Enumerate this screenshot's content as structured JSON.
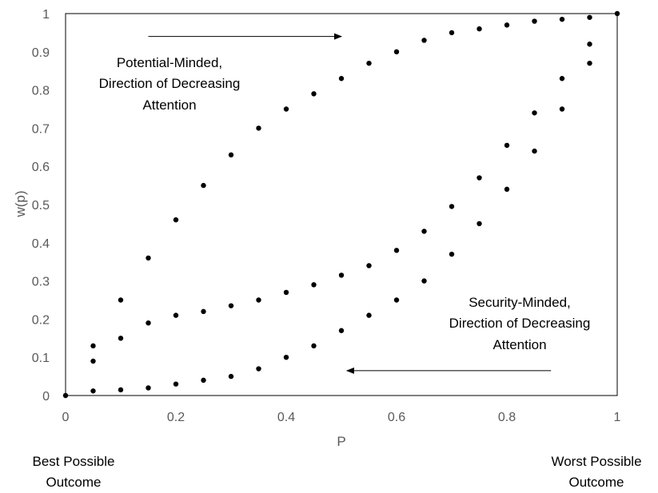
{
  "chart_data": {
    "type": "scatter",
    "title": "",
    "xlabel": "P",
    "ylabel": "w(p)",
    "xlim": [
      0,
      1
    ],
    "ylim": [
      0,
      1
    ],
    "grid": false,
    "x_ticks": [
      "0",
      "0.2",
      "0.4",
      "0.6",
      "0.8",
      "1"
    ],
    "y_ticks": [
      "0",
      "0.1",
      "0.2",
      "0.3",
      "0.4",
      "0.5",
      "0.6",
      "0.7",
      "0.8",
      "0.9",
      "1"
    ],
    "series": [
      {
        "x": [
          0,
          0.05,
          0.1,
          0.15,
          0.2,
          0.25,
          0.3,
          0.35,
          0.4,
          0.45,
          0.5,
          0.55,
          0.6,
          0.65,
          0.7,
          0.75,
          0.8,
          0.85,
          0.9,
          0.95,
          1
        ],
        "y": [
          0,
          0.13,
          0.25,
          0.36,
          0.46,
          0.55,
          0.63,
          0.7,
          0.75,
          0.79,
          0.83,
          0.87,
          0.9,
          0.93,
          0.95,
          0.96,
          0.97,
          0.98,
          0.985,
          0.99,
          1
        ]
      },
      {
        "x": [
          0.05,
          0.1,
          0.15,
          0.2,
          0.25,
          0.3,
          0.35,
          0.4,
          0.45,
          0.5,
          0.55,
          0.6,
          0.65,
          0.7,
          0.75,
          0.8,
          0.85,
          0.9,
          0.95
        ],
        "y": [
          0.09,
          0.15,
          0.19,
          0.21,
          0.22,
          0.235,
          0.25,
          0.27,
          0.29,
          0.315,
          0.34,
          0.38,
          0.43,
          0.495,
          0.57,
          0.655,
          0.74,
          0.83,
          0.92
        ]
      },
      {
        "x": [
          0.05,
          0.1,
          0.15,
          0.2,
          0.25,
          0.3,
          0.35,
          0.4,
          0.45,
          0.5,
          0.55,
          0.6,
          0.65,
          0.7,
          0.75,
          0.8,
          0.85,
          0.9,
          0.95
        ],
        "y": [
          0.012,
          0.015,
          0.02,
          0.03,
          0.04,
          0.05,
          0.07,
          0.1,
          0.13,
          0.17,
          0.21,
          0.25,
          0.3,
          0.37,
          0.45,
          0.54,
          0.64,
          0.75,
          0.87
        ]
      }
    ],
    "annotations": [
      {
        "lines": [
          "Potential-Minded,",
          "Direction of Decreasing",
          "Attention"
        ],
        "arrow_from": [
          0.15,
          0.94
        ],
        "arrow_to": [
          0.5,
          0.94
        ]
      },
      {
        "lines": [
          "Security-Minded,",
          "Direction of Decreasing",
          "Attention"
        ],
        "arrow_from": [
          0.88,
          0.065
        ],
        "arrow_to": [
          0.51,
          0.065
        ]
      }
    ]
  },
  "corner_labels": {
    "left": [
      "Best Possible",
      "Outcome"
    ],
    "right": [
      "Worst Possible",
      "Outcome"
    ]
  }
}
